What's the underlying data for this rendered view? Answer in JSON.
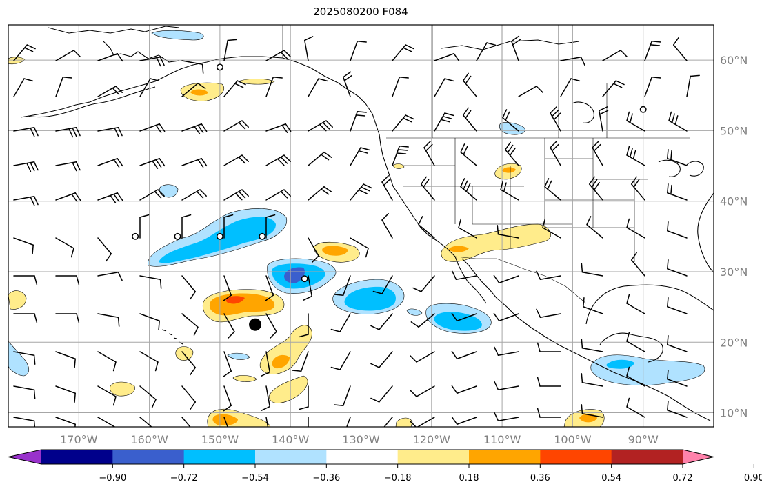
{
  "title": "2025080200 F084",
  "map": {
    "lon_range": [
      -180,
      -80
    ],
    "lat_range": [
      8,
      65
    ],
    "lon_ticks": [
      {
        "value": -170,
        "label": "170°W"
      },
      {
        "value": -160,
        "label": "160°W"
      },
      {
        "value": -150,
        "label": "150°W"
      },
      {
        "value": -140,
        "label": "140°W"
      },
      {
        "value": -130,
        "label": "130°W"
      },
      {
        "value": -120,
        "label": "120°W"
      },
      {
        "value": -110,
        "label": "110°W"
      },
      {
        "value": -100,
        "label": "100°W"
      },
      {
        "value": -90,
        "label": "90°W"
      }
    ],
    "lat_ticks": [
      {
        "value": 10,
        "label": "10°N"
      },
      {
        "value": 20,
        "label": "20°N"
      },
      {
        "value": 30,
        "label": "30°N"
      },
      {
        "value": 40,
        "label": "40°N"
      },
      {
        "value": 50,
        "label": "50°N"
      },
      {
        "value": 60,
        "label": "60°N"
      }
    ]
  },
  "colorbar": {
    "colors": [
      "#9932cc",
      "#00008b",
      "#3a5fcd",
      "#00bfff",
      "#b0e2ff",
      "#ffffff",
      "#ffec8b",
      "#ffa500",
      "#ff4500",
      "#b22222",
      "#ff82ab"
    ],
    "labels": [
      "−0.90",
      "−0.72",
      "−0.54",
      "−0.36",
      "−0.18",
      "0.18",
      "0.36",
      "0.54",
      "0.72",
      "0.90"
    ]
  },
  "markers": [
    {
      "type": "open-circle",
      "lon": -150,
      "lat": 59
    },
    {
      "type": "open-circle",
      "lon": -90,
      "lat": 53
    },
    {
      "type": "open-circle",
      "lon": -162,
      "lat": 35
    },
    {
      "type": "open-circle",
      "lon": -156,
      "lat": 35
    },
    {
      "type": "open-circle",
      "lon": -150,
      "lat": 35
    },
    {
      "type": "open-circle",
      "lon": -144,
      "lat": 35
    },
    {
      "type": "open-circle",
      "lon": -138,
      "lat": 29
    },
    {
      "type": "filled-circle",
      "lon": -145,
      "lat": 22.5
    }
  ]
}
